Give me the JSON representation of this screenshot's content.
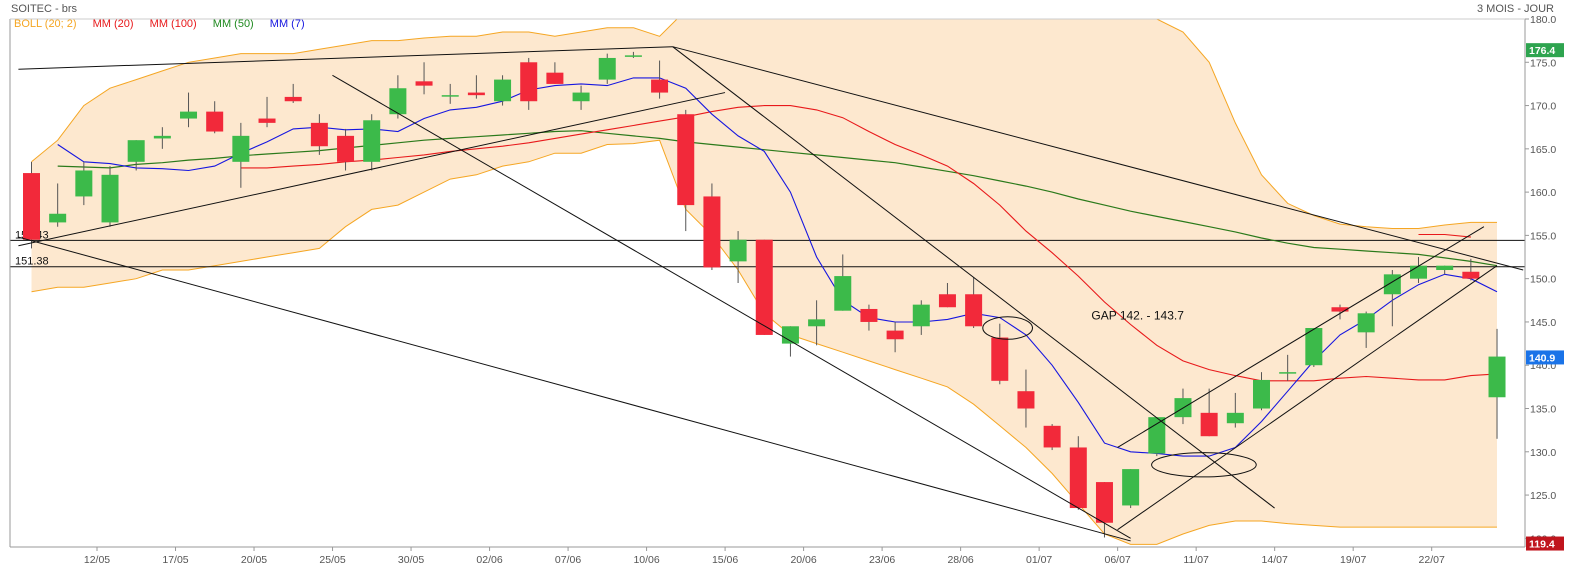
{
  "header": {
    "title": "SOITEC - brs",
    "period": "3 MOIS - JOUR"
  },
  "legend": [
    {
      "label": "BOLL (20; 2)",
      "color": "#f5a623"
    },
    {
      "label": "MM (20)",
      "color": "#e8191b"
    },
    {
      "label": "MM (100)",
      "color": "#e8191b"
    },
    {
      "label": "MM (50)",
      "color": "#1f8a1f"
    },
    {
      "label": "MM (7)",
      "color": "#1616e0"
    }
  ],
  "colors": {
    "up": "#3cba4a",
    "down": "#f2293a",
    "band_fill": "#fde8cf",
    "band_line": "#f5a623",
    "ma20": "#e8191b",
    "ma50": "#2b7a1b",
    "ma7": "#1616e0",
    "trend": "#111111"
  },
  "chart_data": {
    "type": "candlestick",
    "y_range": [
      119,
      180
    ],
    "y_ticks": [
      120,
      125,
      130,
      135,
      140,
      145,
      150,
      155,
      160,
      165,
      170,
      175,
      180
    ],
    "y_tick_labels": [
      "120.0",
      "125.0",
      "130.0",
      "135.0",
      "140.0",
      "145.0",
      "150.0",
      "155.0",
      "160.0",
      "165.0",
      "170.0",
      "175.0",
      "180.0"
    ],
    "x_labels": [
      {
        "index": 3,
        "label": "12/05"
      },
      {
        "index": 6,
        "label": "17/05"
      },
      {
        "index": 9,
        "label": "20/05"
      },
      {
        "index": 12,
        "label": "25/05"
      },
      {
        "index": 15,
        "label": "30/05"
      },
      {
        "index": 18,
        "label": "02/06"
      },
      {
        "index": 21,
        "label": "07/06"
      },
      {
        "index": 24,
        "label": "10/06"
      },
      {
        "index": 27,
        "label": "15/06"
      },
      {
        "index": 30,
        "label": "20/06"
      },
      {
        "index": 33,
        "label": "23/06"
      },
      {
        "index": 36,
        "label": "28/06"
      },
      {
        "index": 39,
        "label": "01/07"
      },
      {
        "index": 42,
        "label": "06/07"
      },
      {
        "index": 45,
        "label": "11/07"
      },
      {
        "index": 48,
        "label": "14/07"
      },
      {
        "index": 51,
        "label": "19/07"
      },
      {
        "index": 54,
        "label": "22/07"
      }
    ],
    "candles": [
      {
        "o": 162.2,
        "h": 163.5,
        "l": 153.5,
        "c": 154.5
      },
      {
        "o": 156.5,
        "h": 161,
        "l": 156,
        "c": 157.5
      },
      {
        "o": 159.5,
        "h": 163.5,
        "l": 158.5,
        "c": 162.5
      },
      {
        "o": 156.5,
        "h": 163,
        "l": 156,
        "c": 162
      },
      {
        "o": 163.5,
        "h": 166,
        "l": 162.5,
        "c": 166
      },
      {
        "o": 166.2,
        "h": 167.5,
        "l": 165,
        "c": 166.5
      },
      {
        "o": 168.5,
        "h": 171.5,
        "l": 167.5,
        "c": 169.3
      },
      {
        "o": 169.3,
        "h": 170.5,
        "l": 166.8,
        "c": 167
      },
      {
        "o": 163.5,
        "h": 168,
        "l": 160.5,
        "c": 166.5
      },
      {
        "o": 168.5,
        "h": 171,
        "l": 167.5,
        "c": 168
      },
      {
        "o": 171,
        "h": 172.5,
        "l": 170.3,
        "c": 170.5
      },
      {
        "o": 168,
        "h": 169,
        "l": 164.3,
        "c": 165.3
      },
      {
        "o": 166.5,
        "h": 167.3,
        "l": 162.5,
        "c": 163.5
      },
      {
        "o": 163.5,
        "h": 169,
        "l": 162.5,
        "c": 168.3
      },
      {
        "o": 169,
        "h": 173.5,
        "l": 168.5,
        "c": 172
      },
      {
        "o": 172.8,
        "h": 175,
        "l": 171.3,
        "c": 172.3
      },
      {
        "o": 171.2,
        "h": 172.5,
        "l": 170.2,
        "c": 171.2
      },
      {
        "o": 171.5,
        "h": 173.5,
        "l": 170.8,
        "c": 171.2
      },
      {
        "o": 170.5,
        "h": 173.5,
        "l": 170,
        "c": 173
      },
      {
        "o": 175,
        "h": 175.5,
        "l": 169.5,
        "c": 170.5
      },
      {
        "o": 173.8,
        "h": 175,
        "l": 172.5,
        "c": 172.5
      },
      {
        "o": 170.5,
        "h": 172.3,
        "l": 169.5,
        "c": 171.5
      },
      {
        "o": 173,
        "h": 176,
        "l": 172.5,
        "c": 175.5
      },
      {
        "o": 175.8,
        "h": 176.2,
        "l": 175.5,
        "c": 175.8
      },
      {
        "o": 173,
        "h": 175.2,
        "l": 170.8,
        "c": 171.5
      },
      {
        "o": 169,
        "h": 169.5,
        "l": 155.5,
        "c": 158.5
      },
      {
        "o": 159.5,
        "h": 161,
        "l": 151,
        "c": 151.3
      },
      {
        "o": 152,
        "h": 155.5,
        "l": 149.5,
        "c": 154.5
      },
      {
        "o": 154.5,
        "h": 154.5,
        "l": 143.5,
        "c": 143.5
      },
      {
        "o": 142.5,
        "h": 144.5,
        "l": 141,
        "c": 144.5
      },
      {
        "o": 144.5,
        "h": 147.5,
        "l": 142.3,
        "c": 145.3
      },
      {
        "o": 146.3,
        "h": 152.8,
        "l": 146.3,
        "c": 150.3
      },
      {
        "o": 146.5,
        "h": 147,
        "l": 144,
        "c": 145
      },
      {
        "o": 144,
        "h": 145,
        "l": 141.5,
        "c": 143
      },
      {
        "o": 144.5,
        "h": 147.5,
        "l": 143.5,
        "c": 147
      },
      {
        "o": 148.2,
        "h": 149.5,
        "l": 146.7,
        "c": 146.7
      },
      {
        "o": 148.2,
        "h": 150.2,
        "l": 144.3,
        "c": 144.5
      },
      {
        "o": 143.2,
        "h": 144.8,
        "l": 137.8,
        "c": 138.2
      },
      {
        "o": 137,
        "h": 139.5,
        "l": 132.8,
        "c": 135
      },
      {
        "o": 133,
        "h": 133.2,
        "l": 130.2,
        "c": 130.5
      },
      {
        "o": 130.5,
        "h": 131.8,
        "l": 123.3,
        "c": 123.5
      },
      {
        "o": 126.5,
        "h": 126.5,
        "l": 120.1,
        "c": 121.8
      },
      {
        "o": 123.8,
        "h": 128,
        "l": 123.5,
        "c": 128
      },
      {
        "o": 129.8,
        "h": 134,
        "l": 129.5,
        "c": 134
      },
      {
        "o": 134,
        "h": 137.3,
        "l": 133.2,
        "c": 136.2
      },
      {
        "o": 134.5,
        "h": 137.3,
        "l": 131.8,
        "c": 131.8
      },
      {
        "o": 133.3,
        "h": 136.8,
        "l": 132.8,
        "c": 134.5
      },
      {
        "o": 135,
        "h": 139.2,
        "l": 134.8,
        "c": 138.3
      },
      {
        "o": 139.2,
        "h": 141.2,
        "l": 138.2,
        "c": 139.2
      },
      {
        "o": 140,
        "h": 144.3,
        "l": 139.8,
        "c": 144.3
      },
      {
        "o": 146.7,
        "h": 147,
        "l": 145.3,
        "c": 146.2
      },
      {
        "o": 143.8,
        "h": 146.2,
        "l": 142,
        "c": 146
      },
      {
        "o": 148.2,
        "h": 151,
        "l": 144.5,
        "c": 150.5
      },
      {
        "o": 150,
        "h": 152.5,
        "l": 149.5,
        "c": 151.5
      },
      {
        "o": 151,
        "h": 151.5,
        "l": 150.5,
        "c": 151.5
      },
      {
        "o": 150.8,
        "h": 152.3,
        "l": 149.8,
        "c": 150
      },
      {
        "o": 136.3,
        "h": 144.2,
        "l": 131.5,
        "c": 141
      }
    ],
    "bollinger_upper": [
      163.5,
      166,
      170,
      172,
      173,
      174,
      175,
      175.5,
      176,
      176,
      176,
      176.5,
      177,
      177.5,
      177.5,
      177.8,
      178,
      178,
      178.5,
      178.5,
      178,
      178.5,
      179,
      179,
      178,
      181,
      182,
      182,
      182,
      182,
      182,
      182,
      182,
      182,
      182,
      182,
      182,
      182,
      182,
      182,
      182,
      181,
      181,
      180,
      178.5,
      175,
      168,
      162,
      158.7,
      157.3,
      156.3,
      156,
      155.8,
      155.8,
      156.2,
      156.5,
      156.5
    ],
    "bollinger_lower": [
      148.5,
      149,
      149,
      149.5,
      150,
      151,
      151,
      151.5,
      152,
      152.5,
      153,
      153.5,
      156,
      158,
      158.5,
      160,
      161.5,
      162,
      163,
      163.5,
      164.5,
      164.5,
      165.5,
      165.6,
      166,
      158,
      155,
      151,
      146,
      143.5,
      142.5,
      141.5,
      140.5,
      139.5,
      138.5,
      137.5,
      135.5,
      133,
      130.5,
      127.5,
      124,
      120.5,
      119.3,
      119.3,
      120.5,
      121.5,
      122,
      122,
      121.7,
      121.5,
      121.3,
      121.3,
      121.3,
      121.3,
      121.3,
      121.3,
      121.3
    ],
    "mm7": [
      165.5,
      163.5,
      163.3,
      162.8,
      162.7,
      162.5,
      163,
      164.5,
      165.8,
      167.3,
      167.5,
      167.2,
      167.3,
      167,
      168.5,
      169.5,
      169.8,
      170.5,
      171.8,
      172.3,
      172.5,
      172.3,
      173.2,
      173.2,
      172,
      169,
      166.5,
      164.7,
      160,
      152.5,
      147.5,
      145.5,
      145,
      145,
      145.3,
      146,
      145.5,
      143.5,
      140,
      135.7,
      131,
      130,
      129.8,
      129.5,
      129.5,
      130.5,
      133.5,
      137,
      140.5,
      143.5,
      145.3,
      147.5,
      149.3,
      150.5,
      150,
      148.5
    ],
    "mm20": [
      162.8,
      162.8,
      163,
      163.2,
      163.5,
      163.7,
      164,
      164.3,
      164.7,
      165,
      165.3,
      165.7,
      166.2,
      166.7,
      167.2,
      167.7,
      168.2,
      168.7,
      169.3,
      169.8,
      170,
      170,
      169.5,
      168.6,
      167,
      165.5,
      164.3,
      163,
      161,
      158.5,
      155.5,
      153,
      150.3,
      147.3,
      144.7,
      142.3,
      140.5,
      139.5,
      138.8,
      138.2,
      138.2,
      138.2,
      138.5,
      138.7,
      138.5,
      138.3,
      138.3,
      138.8,
      139
    ],
    "mm20_start": 8,
    "mm50": [
      163,
      162.9,
      162.8,
      163.2,
      163.4,
      163.7,
      163.9,
      164.2,
      164.4,
      164.6,
      164.8,
      165.1,
      165.4,
      165.7,
      166,
      166.2,
      166.4,
      166.6,
      166.8,
      167,
      167.1,
      166.8,
      166.5,
      166.2,
      165.8,
      165.5,
      165.2,
      164.9,
      164.6,
      164.3,
      164,
      163.7,
      163.4,
      162.9,
      162.4,
      161.9,
      161.3,
      160.7,
      160,
      159.2,
      158.5,
      157.8,
      157.2,
      156.6,
      156,
      155.4,
      154.7,
      154.1,
      153.6,
      153.4,
      153.2,
      153,
      152.8,
      152.4,
      152,
      151.5
    ],
    "mm100": [
      155.1,
      155.1,
      154.8
    ],
    "mm100_start": 53,
    "levels": [
      {
        "value": 154.43,
        "label": "154.43"
      },
      {
        "value": 151.38,
        "label": "151.38"
      }
    ],
    "price_tags": [
      {
        "value": 176.4,
        "label": "176.4",
        "color": "#2ea44f"
      },
      {
        "value": 140.9,
        "label": "140.9",
        "color": "#1a73e8"
      },
      {
        "value": 119.4,
        "label": "119.4",
        "color": "#c0151d"
      }
    ],
    "annotations": [
      {
        "text": "GAP 142. - 143.7",
        "x": 40.5,
        "y": 145.3
      }
    ],
    "ellipses": [
      {
        "cx": 37.3,
        "cy": 144.3,
        "rx": 0.95,
        "ry": 1.3
      },
      {
        "cx": 44.8,
        "cy": 128.5,
        "rx": 2.0,
        "ry": 1.4
      }
    ],
    "trendlines": [
      {
        "x1": -0.5,
        "y1": 174.2,
        "x2": 24.5,
        "y2": 176.8
      },
      {
        "x1": -0.5,
        "y1": 153.8,
        "x2": 26.5,
        "y2": 171.5
      },
      {
        "x1": 11.5,
        "y1": 173.5,
        "x2": 42,
        "y2": 120
      },
      {
        "x1": -0.5,
        "y1": 154.8,
        "x2": 42,
        "y2": 119.7
      },
      {
        "x1": 24.5,
        "y1": 176.8,
        "x2": 47.5,
        "y2": 123.5
      },
      {
        "x1": 24.5,
        "y1": 176.8,
        "x2": 57,
        "y2": 151
      },
      {
        "x1": 41.5,
        "y1": 130.5,
        "x2": 55.5,
        "y2": 156
      },
      {
        "x1": 41.5,
        "y1": 121,
        "x2": 56,
        "y2": 151.5
      }
    ]
  }
}
